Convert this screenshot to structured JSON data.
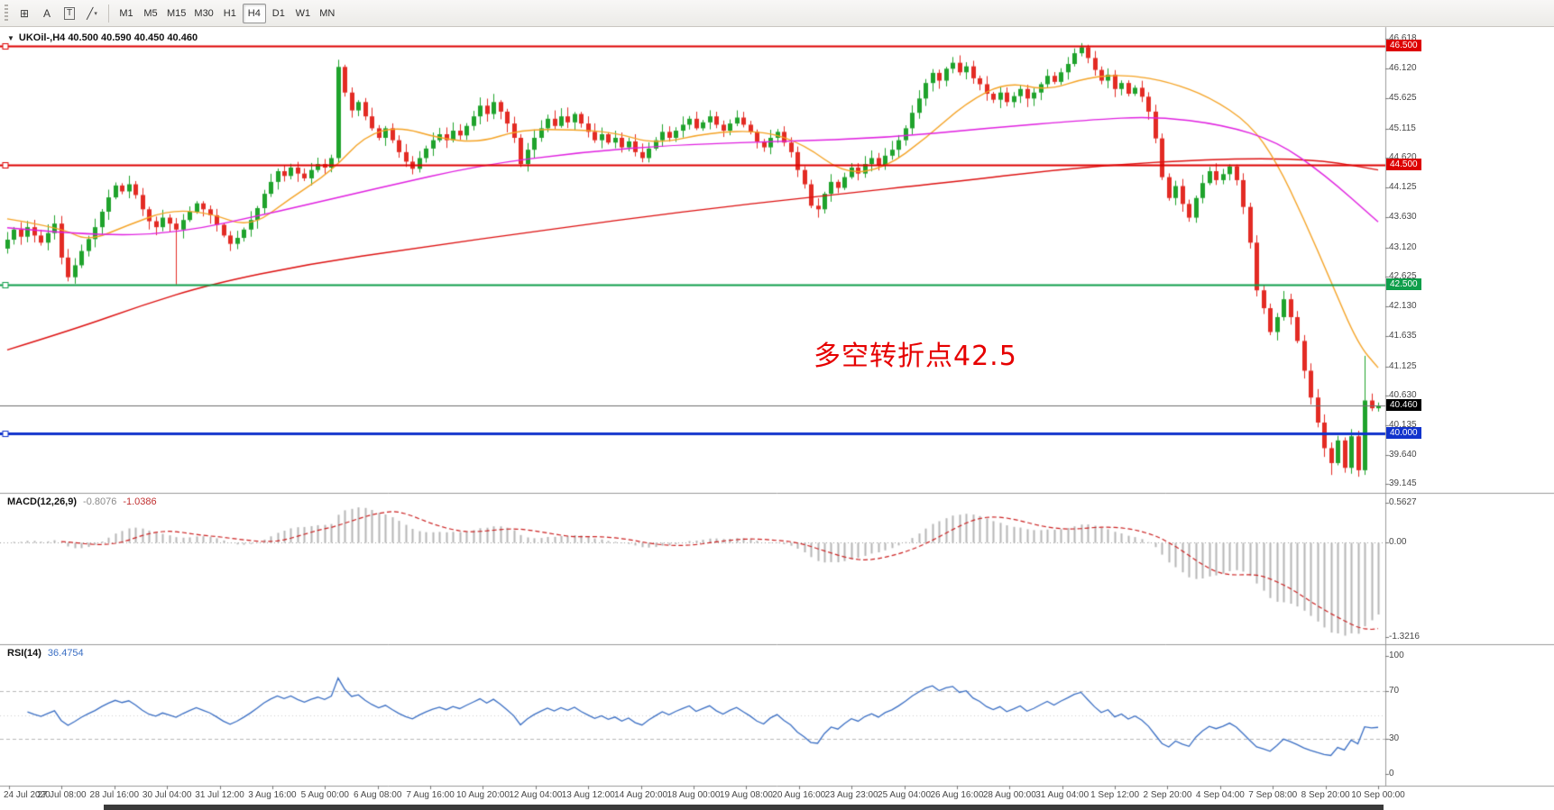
{
  "toolbar": {
    "tools": [
      {
        "name": "grid-tool",
        "glyph": "⊞"
      },
      {
        "name": "text-a-tool",
        "glyph": "A"
      },
      {
        "name": "text-frame-tool",
        "glyph": "T",
        "boxed": true
      },
      {
        "name": "line-studies-tool",
        "glyph": "╱",
        "dropdown": true
      }
    ],
    "timeframes": [
      "M1",
      "M5",
      "M15",
      "M30",
      "H1",
      "H4",
      "D1",
      "W1",
      "MN"
    ],
    "active_timeframe": "H4"
  },
  "header": {
    "symbol_line": "UKOil-,H4 40.500 40.590 40.450 40.460"
  },
  "annotation": {
    "text": "多空转折点42.5",
    "color": "#e60000"
  },
  "price_axis": {
    "ticks": [
      "46.618",
      "46.120",
      "45.625",
      "45.115",
      "44.620",
      "44.125",
      "43.630",
      "43.120",
      "42.625",
      "42.130",
      "41.635",
      "41.125",
      "40.630",
      "40.135",
      "39.640",
      "39.145"
    ]
  },
  "time_axis": {
    "labels": [
      "24 Jul 2020",
      "27 Jul 08:00",
      "28 Jul 16:00",
      "30 Jul 04:00",
      "31 Jul 12:00",
      "3 Aug 16:00",
      "5 Aug 00:00",
      "6 Aug 08:00",
      "7 Aug 16:00",
      "10 Aug 20:00",
      "12 Aug 04:00",
      "13 Aug 12:00",
      "14 Aug 20:00",
      "18 Aug 00:00",
      "19 Aug 08:00",
      "20 Aug 16:00",
      "23 Aug 23:00",
      "25 Aug 04:00",
      "26 Aug 16:00",
      "28 Aug 00:00",
      "31 Aug 04:00",
      "1 Sep 12:00",
      "2 Sep 20:00",
      "4 Sep 04:00",
      "7 Sep 08:00",
      "8 Sep 20:00",
      "10 Sep 00:00"
    ]
  },
  "macd": {
    "label": "MACD(12,26,9)",
    "value_main": "-0.8076",
    "value_signal": "-1.0386",
    "axis": [
      {
        "text": "0.5627",
        "value": 0.5627
      },
      {
        "text": "0.00",
        "value": 0
      },
      {
        "text": "-1.3216",
        "value": -1.3216
      }
    ]
  },
  "rsi": {
    "label": "RSI(14)",
    "value": "36.4754",
    "axis": [
      {
        "text": "100",
        "value": 100
      },
      {
        "text": "70",
        "value": 70
      },
      {
        "text": "30",
        "value": 30
      },
      {
        "text": "0",
        "value": 0
      }
    ],
    "levels": [
      70,
      50,
      30
    ]
  },
  "colors": {
    "candle_up": "#1fa32c",
    "candle_down": "#e32b24",
    "ma_fast": "#f5a325",
    "ma_mid": "#e020e0",
    "ma_slow": "#dd1111",
    "macd_hist": "#b6b6b6",
    "macd_signal": "#cc2222",
    "rsi_line": "#3b6fc4",
    "separator": "#9a9a9a",
    "current_line": "#6e6e6e"
  },
  "chart_data": {
    "type": "candlestick",
    "symbol": "UKOil-",
    "timeframe": "H4",
    "ohlc_quote": {
      "open": "40.500",
      "high": "40.590",
      "low": "40.450",
      "close": "40.460"
    },
    "y_range": [
      39.0,
      46.82
    ],
    "first_open": 43.1,
    "closes": [
      43.25,
      43.42,
      43.3,
      43.46,
      43.32,
      43.2,
      43.36,
      43.52,
      42.95,
      42.62,
      42.82,
      43.06,
      43.26,
      43.46,
      43.72,
      43.96,
      44.16,
      44.06,
      44.18,
      44.0,
      43.76,
      43.56,
      43.46,
      43.62,
      43.52,
      43.42,
      43.58,
      43.72,
      43.86,
      43.76,
      43.66,
      43.5,
      43.32,
      43.18,
      43.28,
      43.42,
      43.58,
      43.78,
      44.02,
      44.22,
      44.4,
      44.32,
      44.46,
      44.36,
      44.28,
      44.42,
      44.52,
      44.46,
      44.62,
      46.15,
      45.72,
      45.42,
      45.56,
      45.32,
      45.12,
      44.96,
      45.12,
      44.92,
      44.72,
      44.56,
      44.44,
      44.62,
      44.78,
      44.92,
      45.02,
      44.92,
      45.08,
      45.0,
      45.16,
      45.32,
      45.5,
      45.36,
      45.56,
      45.4,
      45.2,
      44.96,
      44.52,
      44.76,
      44.96,
      45.12,
      45.28,
      45.16,
      45.32,
      45.22,
      45.36,
      45.2,
      45.06,
      44.92,
      45.02,
      44.88,
      44.96,
      44.8,
      44.9,
      44.72,
      44.62,
      44.78,
      44.92,
      45.06,
      44.96,
      45.08,
      45.18,
      45.28,
      45.12,
      45.22,
      45.32,
      45.18,
      45.08,
      45.2,
      45.3,
      45.18,
      45.06,
      44.9,
      44.8,
      44.96,
      45.06,
      44.88,
      44.72,
      44.42,
      44.18,
      43.82,
      43.76,
      44.02,
      44.22,
      44.12,
      44.3,
      44.46,
      44.36,
      44.52,
      44.62,
      44.5,
      44.66,
      44.76,
      44.92,
      45.12,
      45.38,
      45.62,
      45.88,
      46.05,
      45.92,
      46.12,
      46.22,
      46.06,
      46.16,
      45.96,
      45.86,
      45.7,
      45.6,
      45.72,
      45.56,
      45.66,
      45.78,
      45.62,
      45.72,
      45.86,
      46.0,
      45.9,
      46.06,
      46.2,
      46.38,
      46.48,
      46.3,
      46.1,
      45.92,
      46.02,
      45.78,
      45.88,
      45.7,
      45.8,
      45.65,
      45.4,
      44.95,
      44.3,
      43.95,
      44.15,
      43.85,
      43.62,
      43.95,
      44.2,
      44.4,
      44.25,
      44.35,
      44.48,
      44.25,
      43.8,
      43.2,
      42.4,
      42.1,
      41.7,
      41.95,
      42.25,
      41.95,
      41.55,
      41.05,
      40.6,
      40.18,
      39.75,
      39.5,
      39.88,
      39.42,
      39.95,
      39.38,
      40.55,
      40.42,
      40.46
    ],
    "special_wicks": {
      "9": {
        "low": 42.55
      },
      "25": {
        "low": 42.5
      },
      "49": {
        "high": 46.27
      },
      "159": {
        "high": 46.55
      },
      "196": {
        "low": 39.3
      },
      "200": {
        "low": 39.27
      },
      "201": {
        "high": 41.3
      }
    },
    "horizontal_lines": [
      {
        "price": 46.5,
        "label": "46.500",
        "color": "#dd0000",
        "width": 2
      },
      {
        "price": 44.5,
        "label": "44.500",
        "color": "#dd0000",
        "width": 2
      },
      {
        "price": 42.5,
        "label": "42.500",
        "color": "#0e9e4a",
        "width": 2
      },
      {
        "price": 40.0,
        "label": "40.000",
        "color": "#1133cc",
        "width": 3
      }
    ],
    "current_price": {
      "price": 40.46,
      "label": "40.460",
      "tag_color": "#000000"
    },
    "moving_averages": {
      "fast_orange": [
        [
          0,
          43.6
        ],
        [
          8,
          43.45
        ],
        [
          12,
          43.22
        ],
        [
          18,
          43.5
        ],
        [
          24,
          43.75
        ],
        [
          30,
          43.7
        ],
        [
          36,
          43.45
        ],
        [
          42,
          43.95
        ],
        [
          48,
          44.4
        ],
        [
          53,
          45.0
        ],
        [
          58,
          45.15
        ],
        [
          64,
          44.95
        ],
        [
          70,
          44.88
        ],
        [
          76,
          45.1
        ],
        [
          84,
          45.1
        ],
        [
          90,
          45.05
        ],
        [
          96,
          44.85
        ],
        [
          104,
          45.05
        ],
        [
          112,
          45.08
        ],
        [
          118,
          44.85
        ],
        [
          124,
          44.35
        ],
        [
          130,
          44.45
        ],
        [
          136,
          44.95
        ],
        [
          142,
          45.55
        ],
        [
          148,
          45.9
        ],
        [
          154,
          45.75
        ],
        [
          160,
          45.98
        ],
        [
          166,
          46.02
        ],
        [
          172,
          45.9
        ],
        [
          178,
          45.65
        ],
        [
          184,
          45.2
        ],
        [
          188,
          44.55
        ],
        [
          192,
          43.6
        ],
        [
          196,
          42.55
        ],
        [
          200,
          41.5
        ],
        [
          203,
          41.1
        ]
      ],
      "mid_magenta": [
        [
          0,
          43.45
        ],
        [
          12,
          43.32
        ],
        [
          25,
          43.35
        ],
        [
          40,
          43.72
        ],
        [
          55,
          44.12
        ],
        [
          70,
          44.5
        ],
        [
          85,
          44.72
        ],
        [
          100,
          44.85
        ],
        [
          115,
          44.9
        ],
        [
          130,
          44.96
        ],
        [
          145,
          45.12
        ],
        [
          160,
          45.26
        ],
        [
          170,
          45.32
        ],
        [
          180,
          45.18
        ],
        [
          188,
          44.9
        ],
        [
          195,
          44.35
        ],
        [
          203,
          43.55
        ]
      ],
      "slow_red": [
        [
          0,
          41.4
        ],
        [
          10,
          41.75
        ],
        [
          20,
          42.15
        ],
        [
          30,
          42.5
        ],
        [
          45,
          42.85
        ],
        [
          60,
          43.1
        ],
        [
          80,
          43.42
        ],
        [
          100,
          43.72
        ],
        [
          120,
          43.98
        ],
        [
          140,
          44.22
        ],
        [
          155,
          44.42
        ],
        [
          170,
          44.56
        ],
        [
          185,
          44.62
        ],
        [
          195,
          44.58
        ],
        [
          203,
          44.42
        ]
      ]
    }
  }
}
